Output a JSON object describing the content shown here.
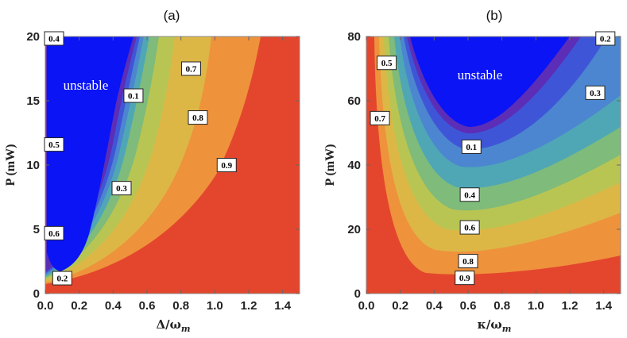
{
  "colors": {
    "unstable": "#0A14F5",
    "bands": [
      "#5C2DB6",
      "#3F55D8",
      "#4C86D0",
      "#4FA7B6",
      "#7FBB7A",
      "#B9C553",
      "#DDB745",
      "#EE923C",
      "#E4462D"
    ]
  },
  "chart_data": [
    {
      "type": "contour",
      "panel_label": "(a)",
      "xlabel": "Δ/ω",
      "xlabel_sub": "m",
      "ylabel": "P (mW)",
      "xlim": [
        0,
        1.5
      ],
      "ylim": [
        0,
        20
      ],
      "xticks": [
        "0.0",
        "0.2",
        "0.4",
        "0.6",
        "0.8",
        "1.0",
        "1.2",
        "1.4"
      ],
      "yticks": [
        "0",
        "5",
        "10",
        "15",
        "20"
      ],
      "region_label": "unstable",
      "levels": [
        0.1,
        0.2,
        0.3,
        0.4,
        0.5,
        0.6,
        0.7,
        0.8,
        0.9
      ],
      "contour_labels": [
        {
          "text": "0.4",
          "x": 0.02,
          "y": 20.0
        },
        {
          "text": "0.7",
          "x": 0.86,
          "y": 17.5
        },
        {
          "text": "0.1",
          "x": 0.52,
          "y": 15.4
        },
        {
          "text": "0.8",
          "x": 0.9,
          "y": 13.7
        },
        {
          "text": "0.5",
          "x": 0.01,
          "y": 11.6
        },
        {
          "text": "0.9",
          "x": 1.07,
          "y": 10.0
        },
        {
          "text": "0.3",
          "x": 0.45,
          "y": 8.2
        },
        {
          "text": "0.6",
          "x": 0.01,
          "y": 4.7
        },
        {
          "text": "0.2",
          "x": 0.1,
          "y": 1.2
        }
      ]
    },
    {
      "type": "contour",
      "panel_label": "(b)",
      "xlabel": "κ/ω",
      "xlabel_sub": "m",
      "ylabel": "P (mW)",
      "xlim": [
        0,
        1.5
      ],
      "ylim": [
        0,
        80
      ],
      "xticks": [
        "0.0",
        "0.2",
        "0.4",
        "0.6",
        "0.8",
        "1.0",
        "1.2",
        "1.4"
      ],
      "yticks": [
        "0",
        "20",
        "40",
        "60",
        "80"
      ],
      "region_label": "unstable",
      "levels": [
        0.1,
        0.2,
        0.3,
        0.4,
        0.5,
        0.6,
        0.7,
        0.8,
        0.9
      ],
      "contour_labels": [
        {
          "text": "0.2",
          "x": 1.41,
          "y": 80.0
        },
        {
          "text": "0.5",
          "x": 0.12,
          "y": 71.8
        },
        {
          "text": "0.3",
          "x": 1.35,
          "y": 62.5
        },
        {
          "text": "0.7",
          "x": 0.08,
          "y": 54.6
        },
        {
          "text": "0.1",
          "x": 0.62,
          "y": 45.7
        },
        {
          "text": "0.4",
          "x": 0.61,
          "y": 30.8
        },
        {
          "text": "0.6",
          "x": 0.61,
          "y": 20.6
        },
        {
          "text": "0.8",
          "x": 0.6,
          "y": 10.1
        },
        {
          "text": "0.9",
          "x": 0.58,
          "y": 4.9
        }
      ]
    }
  ]
}
